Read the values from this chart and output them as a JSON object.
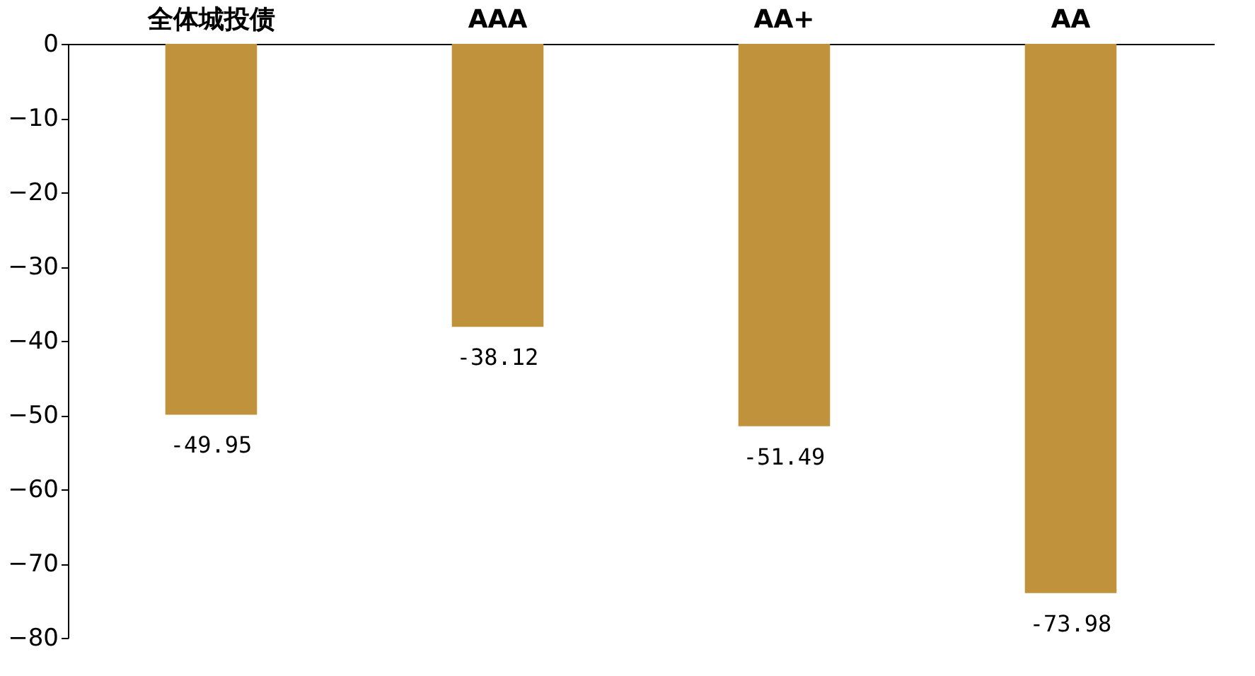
{
  "chart_data": {
    "type": "bar",
    "categories": [
      "全体城投债",
      "AAA",
      "AA+",
      "AA"
    ],
    "values": [
      -49.95,
      -38.12,
      -51.49,
      -73.98
    ],
    "color": "#c0923b",
    "ylim": [
      -80,
      0
    ],
    "yticks": [
      0,
      -10,
      -20,
      -30,
      -40,
      -50,
      -60,
      -70,
      -80
    ],
    "data_labels": true
  }
}
